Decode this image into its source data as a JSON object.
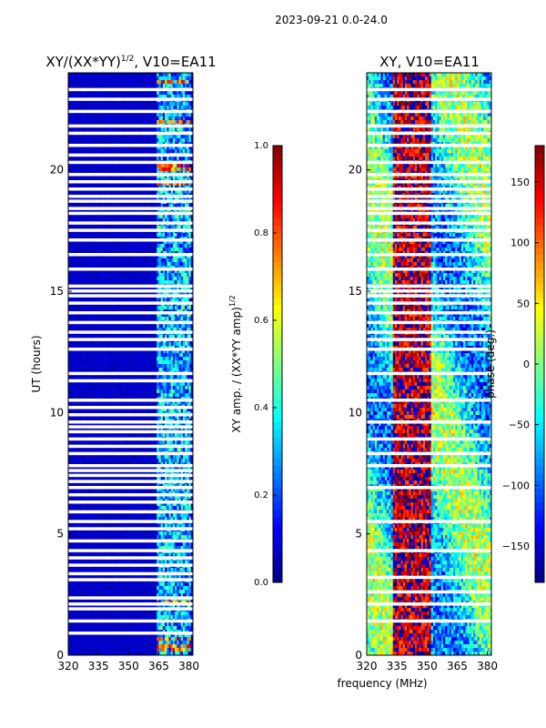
{
  "figure": {
    "suptitle": "2023-09-21 0.0-24.0",
    "shared_xlabel": "frequency (MHz)"
  },
  "chart_data": [
    {
      "type": "heatmap",
      "title": "XY/(XX*YY)",
      "title_superscript": "1/2",
      "title_suffix": ", V10=EA11",
      "xlabel": "",
      "ylabel": "UT (hours)",
      "xlim": [
        320,
        382
      ],
      "ylim": [
        0,
        24
      ],
      "xticks": [
        320,
        335,
        350,
        365,
        380
      ],
      "yticks": [
        0,
        5,
        10,
        15,
        20
      ],
      "colormap": "jet",
      "colorbar": {
        "label": "XY amp. / (XX*YY amp)",
        "label_superscript": "1/2",
        "range": [
          0.0,
          1.0
        ],
        "ticks": [
          "0.0",
          "0.2",
          "0.4",
          "0.6",
          "0.8",
          "1.0"
        ]
      },
      "description_values": {
        "background_level": 0.05,
        "band_start_mhz": 364,
        "band_end_mhz": 381,
        "band_level_range": [
          0.1,
          0.5
        ],
        "hot_spots_ut": [
          0.3,
          0.7,
          2.2,
          19.4,
          20.1,
          22.0,
          23.6
        ]
      },
      "flagged_ut_rows": [
        0.9,
        1.4,
        1.9,
        2.1,
        2.35,
        3.1,
        3.35,
        3.7,
        4.0,
        4.3,
        4.7,
        5.2,
        5.5,
        5.9,
        6.3,
        6.6,
        6.9,
        7.15,
        7.4,
        7.6,
        7.8,
        8.3,
        8.6,
        8.9,
        9.2,
        9.4,
        9.6,
        9.9,
        10.2,
        10.5,
        11.3,
        11.6,
        12.6,
        13.0,
        13.3,
        13.7,
        14.1,
        14.5,
        14.8,
        15.0,
        15.2,
        15.9,
        16.5,
        17.1,
        17.5,
        17.8,
        18.2,
        18.4,
        18.7,
        18.9,
        19.2,
        19.5,
        19.8,
        20.3,
        20.6,
        21.0,
        21.5,
        21.8,
        22.4,
        22.9,
        23.3
      ]
    },
    {
      "type": "heatmap",
      "title": "XY, V10=EA11",
      "xlabel": "frequency (MHz)",
      "ylabel": "",
      "xlim": [
        320,
        382
      ],
      "ylim": [
        0,
        24
      ],
      "xticks": [
        320,
        335,
        350,
        365,
        380
      ],
      "yticks": [
        0,
        5,
        10,
        15,
        20
      ],
      "colormap": "jet",
      "colorbar": {
        "label": "phase (deg.)",
        "range": [
          -180,
          180
        ],
        "ticks": [
          "150",
          "100",
          "50",
          "0",
          "−50",
          "−100",
          "−150"
        ],
        "tick_values": [
          150,
          100,
          50,
          0,
          -50,
          -100,
          -150
        ]
      },
      "description_values": {
        "phase_near_335_350_mhz": 160,
        "phase_outer": -40,
        "phase_spread_deg": 120
      },
      "flagged_ut_rows": [
        1.4,
        2.1,
        2.6,
        3.2,
        4.3,
        5.5,
        6.9,
        7.8,
        8.3,
        8.9,
        9.6,
        10.5,
        11.6,
        12.6,
        13.0,
        13.3,
        13.7,
        14.1,
        14.5,
        14.8,
        15.0,
        15.2,
        15.9,
        16.5,
        17.1,
        17.5,
        17.8,
        18.2,
        18.4,
        18.7,
        18.9,
        19.2,
        19.5,
        19.8,
        20.3,
        21.0,
        21.5,
        21.8,
        22.4,
        22.9,
        23.3
      ]
    }
  ]
}
